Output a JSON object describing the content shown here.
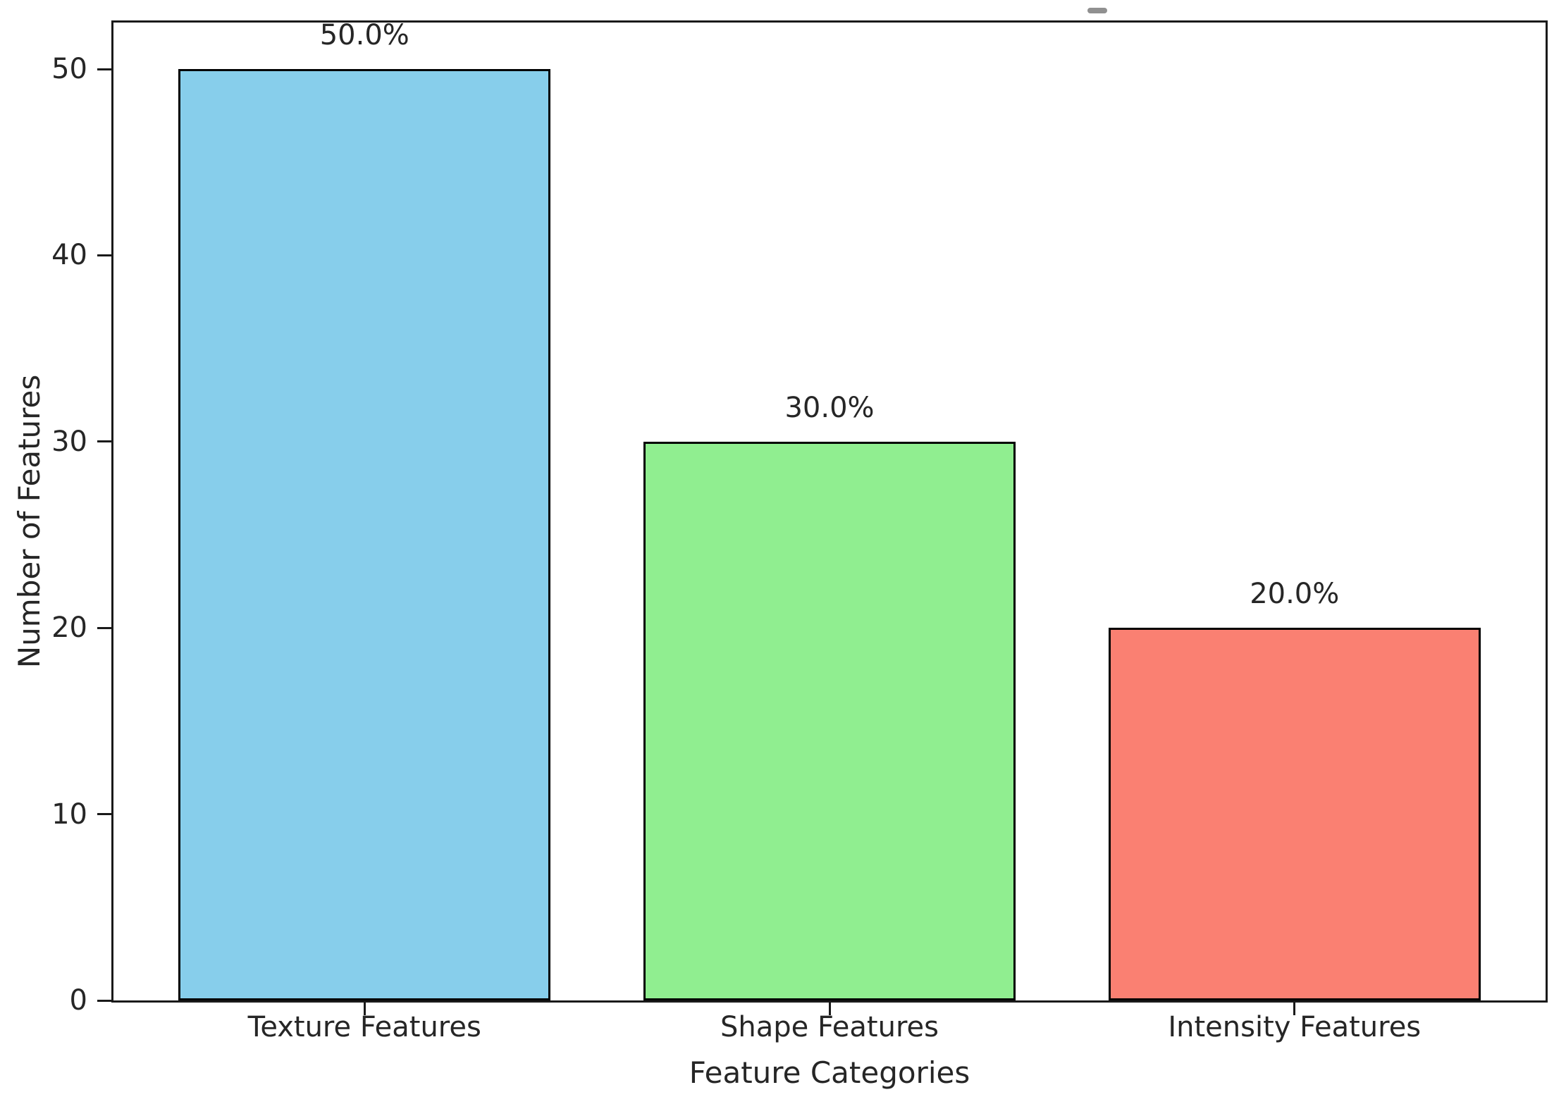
{
  "figure": {
    "background": "#ffffff",
    "clipped_title_mark": true,
    "clipped_title_mark_color": "#909090"
  },
  "chart_data": {
    "type": "bar",
    "title": "",
    "xlabel": "Feature Categories",
    "ylabel": "Number of Features",
    "categories": [
      "Texture Features",
      "Shape Features",
      "Intensity Features"
    ],
    "values": [
      50,
      30,
      20
    ],
    "bar_labels": [
      "50.0%",
      "30.0%",
      "20.0%"
    ],
    "bar_colors": [
      "#87CEEB",
      "#90EE90",
      "#FA8072"
    ],
    "bar_edge_color": "#000000",
    "spine_color": "#1a1a1a",
    "yticks": [
      0,
      10,
      20,
      30,
      40,
      50
    ],
    "ylim": [
      0,
      52.5
    ],
    "xlim_units": [
      -0.54,
      2.54
    ],
    "bar_width_units": 0.8,
    "grid": false,
    "legend": "none"
  }
}
